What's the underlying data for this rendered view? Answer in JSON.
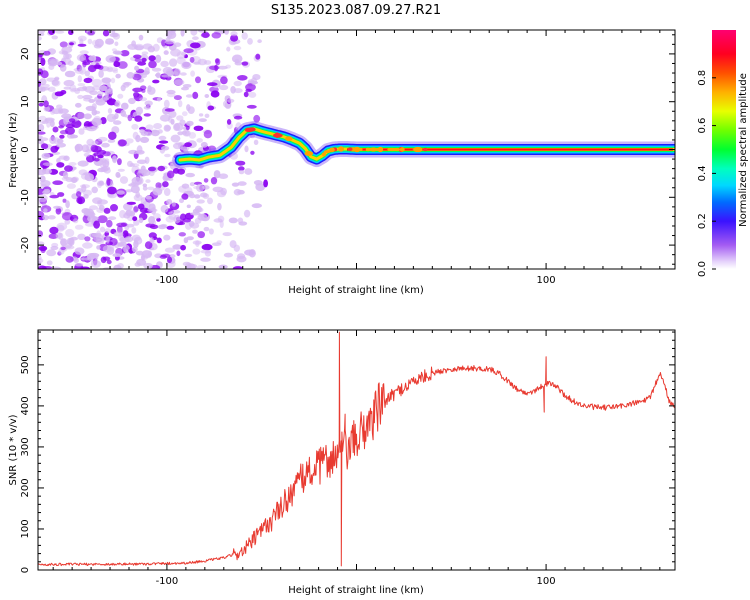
{
  "title": "S135.2023.087.09.27.R21",
  "chart_data": [
    {
      "type": "heatmap",
      "title": "S135.2023.087.09.27.R21",
      "xlabel": "Height of straight line (km)",
      "ylabel": "Frequency (Hz)",
      "xlim": [
        -168,
        168
      ],
      "ylim": [
        -25,
        25
      ],
      "xticks": [
        -100,
        0,
        100
      ],
      "xtick_labels": [
        "-100",
        "",
        "100"
      ],
      "yticks": [
        -20,
        -10,
        0,
        10,
        20
      ],
      "ytick_labels": [
        "-20",
        "-10",
        "0",
        "10",
        "20"
      ],
      "colorbar": {
        "label": "Normalized spectral amplitude",
        "range": [
          0,
          1
        ],
        "ticks": [
          0.0,
          0.2,
          0.4,
          0.6,
          0.8
        ],
        "tick_labels": [
          "0.0",
          "0.2",
          "0.4",
          "0.6",
          "0.8"
        ]
      },
      "noise_region_x": [
        -168,
        -58
      ],
      "ridge_x": [
        -93,
        -88,
        -83,
        -78,
        -72,
        -66,
        -62,
        -58,
        -54,
        -50,
        -46,
        -42,
        -38,
        -34,
        -30,
        -27,
        -24,
        -21,
        -18,
        -15,
        -12,
        -9,
        -5,
        0,
        168
      ],
      "ridge_freq": [
        -2.2,
        -2.0,
        -2.2,
        -1.6,
        -1.2,
        0.5,
        2.5,
        4.0,
        4.3,
        3.8,
        3.4,
        3.0,
        2.6,
        2.0,
        1.3,
        0.2,
        -1.5,
        -2.0,
        -1.3,
        -0.3,
        0.0,
        0.1,
        0.1,
        0.0,
        0.0
      ],
      "ridge_amplitude_start": 0.35,
      "ridge_amplitude_end": 0.9
    },
    {
      "type": "line",
      "xlabel": "Height of straight line (km)",
      "ylabel": "SNR (10 * v/v)",
      "xlim": [
        -168,
        168
      ],
      "ylim": [
        0,
        585
      ],
      "xticks": [
        -100,
        0,
        100
      ],
      "xtick_labels": [
        "-100",
        "",
        "100"
      ],
      "yticks": [
        0,
        100,
        200,
        300,
        400,
        500
      ],
      "ytick_labels": [
        "0",
        "100",
        "200",
        "300",
        "400",
        "500"
      ],
      "series": [
        {
          "name": "SNR",
          "color": "#e83a30",
          "x": [
            -168,
            -150,
            -130,
            -110,
            -90,
            -80,
            -70,
            -60,
            -55,
            -50,
            -45,
            -40,
            -35,
            -30,
            -25,
            -20,
            -15,
            -10,
            -7,
            -5,
            -3,
            0,
            5,
            10,
            15,
            20,
            25,
            30,
            40,
            50,
            60,
            70,
            75,
            80,
            85,
            90,
            95,
            100,
            105,
            110,
            115,
            120,
            130,
            140,
            150,
            155,
            160,
            163,
            165,
            168
          ],
          "values": [
            13,
            14,
            14,
            15,
            17,
            22,
            30,
            45,
            70,
            95,
            120,
            150,
            185,
            215,
            240,
            250,
            270,
            280,
            300,
            290,
            300,
            320,
            350,
            385,
            410,
            430,
            445,
            460,
            480,
            490,
            492,
            490,
            480,
            460,
            440,
            430,
            440,
            455,
            450,
            425,
            410,
            400,
            395,
            400,
            410,
            420,
            480,
            445,
            410,
            400
          ],
          "spikes": [
            {
              "x": -9,
              "value": 580
            },
            {
              "x": -8,
              "value": 10
            },
            {
              "x": -6,
              "value": 380
            },
            {
              "x": 100,
              "value": 520
            },
            {
              "x": 99,
              "value": 385
            }
          ]
        }
      ]
    }
  ],
  "colors": {
    "line": "#e83a30",
    "noise_light": "#d6b8f3",
    "noise_dark": "#8a00f0",
    "axis": "#000000"
  }
}
